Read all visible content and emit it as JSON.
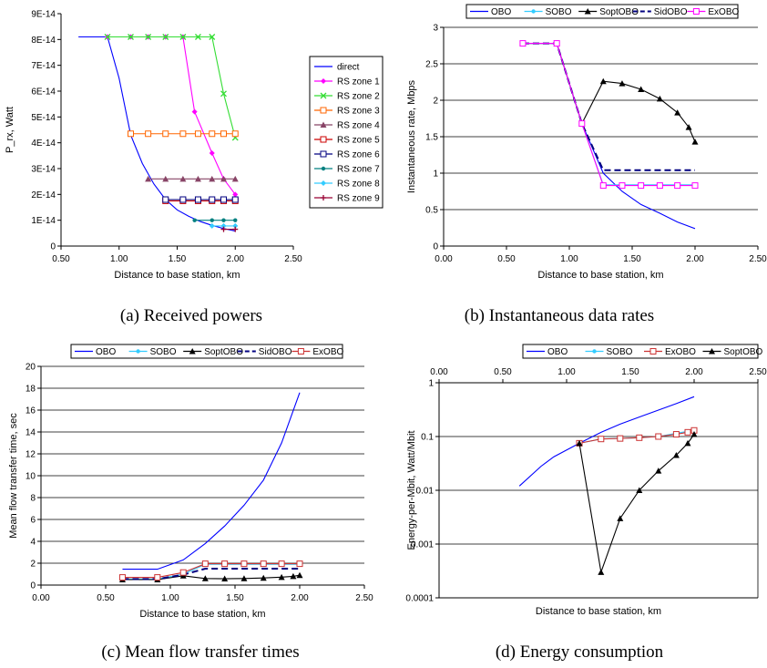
{
  "chart_data": [
    {
      "id": "a",
      "type": "line",
      "caption": "(a) Received powers",
      "xlabel": "Distance to base station, km",
      "ylabel": "P_rx, Watt",
      "xlim": [
        0.5,
        2.5
      ],
      "ylim": [
        0,
        9e-14
      ],
      "xticks": [
        "0.50",
        "1.00",
        "1.50",
        "2.00",
        "2.50"
      ],
      "yticks": [
        "0",
        "1E-14",
        "2E-14",
        "3E-14",
        "4E-14",
        "5E-14",
        "6E-14",
        "7E-14",
        "8E-14",
        "9E-14"
      ],
      "grid": false,
      "legend_position": "right",
      "series": [
        {
          "name": "direct",
          "color": "#0000FF",
          "marker": "none",
          "points": [
            [
              0.65,
              8.1e-14
            ],
            [
              0.9,
              8.1e-14
            ],
            [
              1.0,
              6.5e-14
            ],
            [
              1.1,
              4.3e-14
            ],
            [
              1.2,
              3.2e-14
            ],
            [
              1.3,
              2.4e-14
            ],
            [
              1.4,
              1.8e-14
            ],
            [
              1.5,
              1.4e-14
            ],
            [
              1.6,
              1.15e-14
            ],
            [
              1.7,
              9.5e-15
            ],
            [
              1.8,
              8e-15
            ],
            [
              1.9,
              6.8e-15
            ],
            [
              2.0,
              5.8e-15
            ]
          ]
        },
        {
          "name": "RS zone 1",
          "color": "#FF00FF",
          "marker": "diamond",
          "points": [
            [
              0.9,
              8.1e-14
            ],
            [
              1.1,
              8.1e-14
            ],
            [
              1.25,
              8.1e-14
            ],
            [
              1.4,
              8.1e-14
            ],
            [
              1.55,
              8.1e-14
            ],
            [
              1.65,
              5.2e-14
            ],
            [
              1.8,
              3.6e-14
            ],
            [
              1.9,
              2.6e-14
            ],
            [
              2.0,
              2e-14
            ]
          ]
        },
        {
          "name": "RS zone 2",
          "color": "#33DD33",
          "marker": "x",
          "points": [
            [
              0.9,
              8.1e-14
            ],
            [
              1.1,
              8.1e-14
            ],
            [
              1.25,
              8.1e-14
            ],
            [
              1.4,
              8.1e-14
            ],
            [
              1.55,
              8.1e-14
            ],
            [
              1.68,
              8.1e-14
            ],
            [
              1.8,
              8.1e-14
            ],
            [
              1.9,
              5.9e-14
            ],
            [
              2.0,
              4.2e-14
            ]
          ]
        },
        {
          "name": "RS zone 3",
          "color": "#FF6600",
          "marker": "square",
          "points": [
            [
              1.1,
              4.35e-14
            ],
            [
              1.25,
              4.35e-14
            ],
            [
              1.4,
              4.35e-14
            ],
            [
              1.55,
              4.35e-14
            ],
            [
              1.68,
              4.35e-14
            ],
            [
              1.8,
              4.35e-14
            ],
            [
              1.9,
              4.35e-14
            ],
            [
              2.0,
              4.35e-14
            ]
          ]
        },
        {
          "name": "RS zone 4",
          "color": "#884466",
          "marker": "triangle",
          "points": [
            [
              1.25,
              2.6e-14
            ],
            [
              1.4,
              2.6e-14
            ],
            [
              1.55,
              2.6e-14
            ],
            [
              1.68,
              2.6e-14
            ],
            [
              1.8,
              2.6e-14
            ],
            [
              1.9,
              2.6e-14
            ],
            [
              2.0,
              2.6e-14
            ]
          ]
        },
        {
          "name": "RS zone 5",
          "color": "#CC0000",
          "marker": "square",
          "points": [
            [
              1.4,
              1.75e-14
            ],
            [
              1.55,
              1.75e-14
            ],
            [
              1.68,
              1.75e-14
            ],
            [
              1.8,
              1.75e-14
            ],
            [
              1.9,
              1.75e-14
            ],
            [
              2.0,
              1.75e-14
            ]
          ]
        },
        {
          "name": "RS zone 6",
          "color": "#000080",
          "marker": "square",
          "points": [
            [
              1.4,
              1.8e-14
            ],
            [
              1.55,
              1.8e-14
            ],
            [
              1.68,
              1.8e-14
            ],
            [
              1.8,
              1.8e-14
            ],
            [
              1.9,
              1.8e-14
            ],
            [
              2.0,
              1.8e-14
            ]
          ]
        },
        {
          "name": "RS zone 7",
          "color": "#008080",
          "marker": "dot",
          "points": [
            [
              1.65,
              1e-14
            ],
            [
              1.8,
              1e-14
            ],
            [
              1.9,
              1e-14
            ],
            [
              2.0,
              1e-14
            ]
          ]
        },
        {
          "name": "RS zone 8",
          "color": "#33CCFF",
          "marker": "diamond",
          "points": [
            [
              1.8,
              7.8e-15
            ],
            [
              1.9,
              7.8e-15
            ],
            [
              2.0,
              7.8e-15
            ]
          ]
        },
        {
          "name": "RS zone 9",
          "color": "#990033",
          "marker": "plus",
          "points": [
            [
              1.9,
              6.5e-15
            ],
            [
              2.0,
              6.5e-15
            ]
          ]
        }
      ]
    },
    {
      "id": "b",
      "type": "line",
      "caption": "(b) Instantaneous data rates",
      "xlabel": "Distance to base station, km",
      "ylabel": "Instantaneous rate, Mbps",
      "xlim": [
        0,
        2.5
      ],
      "ylim": [
        0,
        3
      ],
      "xticks": [
        "0.00",
        "0.50",
        "1.00",
        "1.50",
        "2.00",
        "2.50"
      ],
      "yticks": [
        "0",
        "0.5",
        "1",
        "1.5",
        "2",
        "2.5",
        "3"
      ],
      "grid": true,
      "legend_position": "top",
      "series": [
        {
          "name": "OBO",
          "color": "#0000FF",
          "marker": "none",
          "dash": false,
          "points": [
            [
              0.63,
              2.78
            ],
            [
              0.9,
              2.78
            ],
            [
              1.1,
              1.68
            ],
            [
              1.27,
              1.0
            ],
            [
              1.42,
              0.75
            ],
            [
              1.57,
              0.57
            ],
            [
              1.72,
              0.45
            ],
            [
              1.86,
              0.33
            ],
            [
              2.0,
              0.24
            ]
          ]
        },
        {
          "name": "SOBO",
          "color": "#33CCFF",
          "marker": "dot",
          "dash": false,
          "points": [
            [
              0.63,
              2.78
            ],
            [
              0.9,
              2.78
            ],
            [
              1.1,
              1.68
            ],
            [
              1.27,
              0.84
            ],
            [
              1.42,
              0.84
            ],
            [
              1.57,
              0.84
            ],
            [
              1.72,
              0.84
            ],
            [
              1.86,
              0.84
            ],
            [
              2.0,
              0.84
            ]
          ]
        },
        {
          "name": "SoptOBO",
          "color": "#000000",
          "marker": "triangle",
          "dash": false,
          "points": [
            [
              0.63,
              2.78
            ],
            [
              0.9,
              2.78
            ],
            [
              1.1,
              1.68
            ],
            [
              1.27,
              2.26
            ],
            [
              1.42,
              2.23
            ],
            [
              1.57,
              2.15
            ],
            [
              1.72,
              2.02
            ],
            [
              1.86,
              1.83
            ],
            [
              1.95,
              1.63
            ],
            [
              2.0,
              1.43
            ]
          ]
        },
        {
          "name": "SidOBO",
          "color": "#000080",
          "marker": "none",
          "dash": true,
          "points": [
            [
              0.63,
              2.78
            ],
            [
              0.9,
              2.78
            ],
            [
              1.1,
              1.68
            ],
            [
              1.27,
              1.04
            ],
            [
              1.42,
              1.04
            ],
            [
              1.57,
              1.04
            ],
            [
              1.72,
              1.04
            ],
            [
              1.86,
              1.04
            ],
            [
              2.0,
              1.04
            ]
          ]
        },
        {
          "name": "ExOBO",
          "color": "#FF00FF",
          "marker": "square",
          "dash": false,
          "points": [
            [
              0.63,
              2.78
            ],
            [
              0.9,
              2.78
            ],
            [
              1.1,
              1.68
            ],
            [
              1.27,
              0.83
            ],
            [
              1.42,
              0.83
            ],
            [
              1.57,
              0.83
            ],
            [
              1.72,
              0.83
            ],
            [
              1.86,
              0.83
            ],
            [
              2.0,
              0.83
            ]
          ]
        }
      ]
    },
    {
      "id": "c",
      "type": "line",
      "caption": "(c) Mean flow transfer times",
      "xlabel": "Distance to base station, km",
      "ylabel": "Mean flow transfer time, sec",
      "xlim": [
        0,
        2.5
      ],
      "ylim": [
        0,
        20
      ],
      "xticks": [
        "0.00",
        "0.50",
        "1.00",
        "1.50",
        "2.00",
        "2.50"
      ],
      "yticks": [
        "0",
        "2",
        "4",
        "6",
        "8",
        "10",
        "12",
        "14",
        "16",
        "18",
        "20"
      ],
      "grid": true,
      "legend_position": "top",
      "series": [
        {
          "name": "OBO",
          "color": "#0000FF",
          "marker": "none",
          "dash": false,
          "points": [
            [
              0.63,
              1.45
            ],
            [
              0.9,
              1.45
            ],
            [
              1.1,
              2.3
            ],
            [
              1.27,
              3.8
            ],
            [
              1.42,
              5.4
            ],
            [
              1.57,
              7.3
            ],
            [
              1.72,
              9.6
            ],
            [
              1.86,
              13.0
            ],
            [
              2.0,
              17.6
            ]
          ]
        },
        {
          "name": "SOBO",
          "color": "#33CCFF",
          "marker": "dot",
          "dash": false,
          "points": [
            [
              0.63,
              0.55
            ],
            [
              0.9,
              0.55
            ],
            [
              1.1,
              1.0
            ],
            [
              1.27,
              1.9
            ],
            [
              1.42,
              1.9
            ],
            [
              1.57,
              1.9
            ],
            [
              1.72,
              1.9
            ],
            [
              1.86,
              1.9
            ],
            [
              2.0,
              1.9
            ]
          ]
        },
        {
          "name": "SoptOBO",
          "color": "#000000",
          "marker": "triangle",
          "dash": false,
          "points": [
            [
              0.63,
              0.5
            ],
            [
              0.9,
              0.5
            ],
            [
              1.1,
              0.85
            ],
            [
              1.27,
              0.6
            ],
            [
              1.42,
              0.58
            ],
            [
              1.57,
              0.6
            ],
            [
              1.72,
              0.65
            ],
            [
              1.86,
              0.72
            ],
            [
              1.95,
              0.8
            ],
            [
              2.0,
              0.9
            ]
          ]
        },
        {
          "name": "SidOBO",
          "color": "#000080",
          "marker": "none",
          "dash": true,
          "points": [
            [
              0.63,
              0.55
            ],
            [
              0.9,
              0.55
            ],
            [
              1.1,
              0.95
            ],
            [
              1.27,
              1.5
            ],
            [
              1.42,
              1.5
            ],
            [
              1.57,
              1.5
            ],
            [
              1.72,
              1.5
            ],
            [
              1.86,
              1.5
            ],
            [
              2.0,
              1.5
            ]
          ]
        },
        {
          "name": "ExOBO",
          "color": "#CC3333",
          "marker": "square",
          "dash": false,
          "points": [
            [
              0.63,
              0.7
            ],
            [
              0.9,
              0.7
            ],
            [
              1.1,
              1.15
            ],
            [
              1.27,
              1.95
            ],
            [
              1.42,
              1.95
            ],
            [
              1.57,
              1.95
            ],
            [
              1.72,
              1.95
            ],
            [
              1.86,
              1.95
            ],
            [
              2.0,
              1.95
            ]
          ]
        }
      ]
    },
    {
      "id": "d",
      "type": "line",
      "caption": "(d) Energy consumption",
      "xlabel": "Distance to base station, km",
      "ylabel": "Energy-per-Mbit, Watt/Mbit",
      "xlim": [
        0,
        2.5
      ],
      "ylim": [
        0.0001,
        1
      ],
      "yscale": "log",
      "xaxis_position": "top",
      "xticks": [
        "0.00",
        "0.50",
        "1.00",
        "1.50",
        "2.00",
        "2.50"
      ],
      "yticks": [
        "0.0001",
        "0.001",
        "0.01",
        "0.1",
        "1"
      ],
      "grid": true,
      "legend_position": "top",
      "series": [
        {
          "name": "OBO",
          "color": "#0000FF",
          "marker": "none",
          "points": [
            [
              0.63,
              0.012
            ],
            [
              0.8,
              0.028
            ],
            [
              0.9,
              0.042
            ],
            [
              1.1,
              0.075
            ],
            [
              1.27,
              0.12
            ],
            [
              1.42,
              0.17
            ],
            [
              1.57,
              0.23
            ],
            [
              1.72,
              0.31
            ],
            [
              1.86,
              0.41
            ],
            [
              2.0,
              0.55
            ]
          ]
        },
        {
          "name": "SOBO",
          "color": "#33CCFF",
          "marker": "dot",
          "points": [
            [
              1.1,
              0.075
            ],
            [
              1.27,
              0.09
            ],
            [
              1.42,
              0.092
            ],
            [
              1.57,
              0.095
            ],
            [
              1.72,
              0.1
            ],
            [
              1.86,
              0.115
            ],
            [
              1.95,
              0.125
            ],
            [
              2.0,
              0.135
            ]
          ]
        },
        {
          "name": "ExOBO",
          "color": "#CC3333",
          "marker": "square",
          "points": [
            [
              1.1,
              0.075
            ],
            [
              1.27,
              0.09
            ],
            [
              1.42,
              0.092
            ],
            [
              1.57,
              0.095
            ],
            [
              1.72,
              0.1
            ],
            [
              1.86,
              0.11
            ],
            [
              1.95,
              0.12
            ],
            [
              2.0,
              0.13
            ]
          ]
        },
        {
          "name": "SoptOBO",
          "color": "#000000",
          "marker": "triangle",
          "points": [
            [
              1.1,
              0.075
            ],
            [
              1.27,
              0.0003
            ],
            [
              1.42,
              0.003
            ],
            [
              1.57,
              0.01
            ],
            [
              1.72,
              0.023
            ],
            [
              1.86,
              0.045
            ],
            [
              1.95,
              0.075
            ],
            [
              2.0,
              0.11
            ]
          ]
        }
      ]
    }
  ]
}
